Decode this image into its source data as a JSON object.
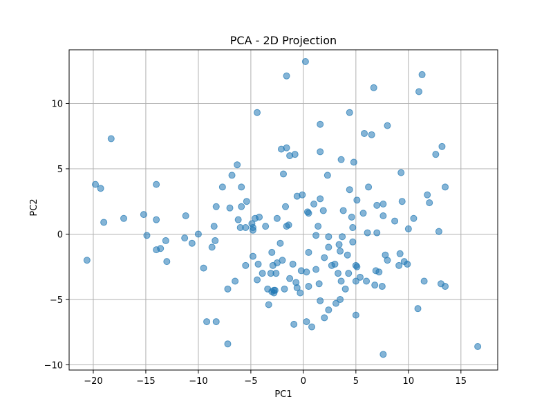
{
  "chart_data": {
    "type": "scatter",
    "title": "PCA - 2D Projection",
    "xlabel": "PC1",
    "ylabel": "PC2",
    "xlim": [
      -22.3,
      18.5
    ],
    "ylim": [
      -10.4,
      14.1
    ],
    "xticks": [
      -20,
      -15,
      -10,
      -5,
      0,
      5,
      10,
      15
    ],
    "yticks": [
      -10,
      -5,
      0,
      5,
      10
    ],
    "grid": true,
    "point_color": "#1f77b4",
    "point_alpha": 0.55,
    "points": [
      [
        -20.6,
        -2.0
      ],
      [
        -19.8,
        3.8
      ],
      [
        -19.3,
        3.5
      ],
      [
        -19.0,
        0.9
      ],
      [
        -18.3,
        7.3
      ],
      [
        -17.1,
        1.2
      ],
      [
        -15.2,
        1.5
      ],
      [
        -14.9,
        -0.1
      ],
      [
        -14.0,
        3.8
      ],
      [
        -14.0,
        1.1
      ],
      [
        -14.0,
        -1.2
      ],
      [
        -13.6,
        -1.1
      ],
      [
        -13.1,
        -0.5
      ],
      [
        -13.0,
        -2.1
      ],
      [
        -11.3,
        -0.3
      ],
      [
        -11.2,
        1.4
      ],
      [
        -10.6,
        -0.7
      ],
      [
        -10.0,
        0.0
      ],
      [
        -9.5,
        -2.6
      ],
      [
        -9.2,
        -6.7
      ],
      [
        -8.7,
        -1.0
      ],
      [
        -8.5,
        0.6
      ],
      [
        -8.4,
        -0.5
      ],
      [
        -8.3,
        2.1
      ],
      [
        -8.3,
        -6.7
      ],
      [
        -7.7,
        3.6
      ],
      [
        -7.2,
        -4.2
      ],
      [
        -7.2,
        -8.4
      ],
      [
        -7.0,
        2.0
      ],
      [
        -6.8,
        4.5
      ],
      [
        -6.5,
        -3.6
      ],
      [
        -6.3,
        5.3
      ],
      [
        -6.2,
        1.1
      ],
      [
        -6.0,
        0.5
      ],
      [
        -5.9,
        2.1
      ],
      [
        -5.9,
        3.6
      ],
      [
        -5.5,
        0.5
      ],
      [
        -5.5,
        -2.4
      ],
      [
        -5.4,
        2.5
      ],
      [
        -4.9,
        0.8
      ],
      [
        -4.8,
        -1.7
      ],
      [
        -4.8,
        0.3
      ],
      [
        -4.8,
        0.5
      ],
      [
        -4.6,
        1.2
      ],
      [
        -4.4,
        9.3
      ],
      [
        -4.4,
        -3.5
      ],
      [
        -4.3,
        -2.3
      ],
      [
        -4.2,
        1.3
      ],
      [
        -3.9,
        -3.0
      ],
      [
        -3.6,
        0.6
      ],
      [
        -3.4,
        -4.2
      ],
      [
        -3.3,
        -5.4
      ],
      [
        -3.1,
        -3.0
      ],
      [
        -3.0,
        -1.4
      ],
      [
        -3.0,
        -4.4
      ],
      [
        -2.9,
        -2.4
      ],
      [
        -2.8,
        -4.5
      ],
      [
        -2.8,
        -4.3
      ],
      [
        -2.7,
        -4.3
      ],
      [
        -2.6,
        -3.0
      ],
      [
        -2.5,
        1.2
      ],
      [
        -2.5,
        -2.2
      ],
      [
        -2.2,
        -0.7
      ],
      [
        -2.1,
        6.5
      ],
      [
        -2.0,
        -2.0
      ],
      [
        -1.9,
        4.6
      ],
      [
        -1.8,
        -4.2
      ],
      [
        -1.7,
        2.1
      ],
      [
        -1.6,
        12.1
      ],
      [
        -1.6,
        6.6
      ],
      [
        -1.6,
        0.6
      ],
      [
        -1.4,
        0.7
      ],
      [
        -1.3,
        -3.4
      ],
      [
        -1.3,
        6.0
      ],
      [
        -1.0,
        -2.3
      ],
      [
        -0.9,
        -6.9
      ],
      [
        -0.8,
        6.1
      ],
      [
        -0.7,
        -3.7
      ],
      [
        -0.6,
        2.9
      ],
      [
        -0.6,
        -4.1
      ],
      [
        -0.3,
        -4.5
      ],
      [
        -0.2,
        -2.8
      ],
      [
        -0.1,
        3.0
      ],
      [
        0.2,
        13.2
      ],
      [
        0.3,
        -2.9
      ],
      [
        0.3,
        -6.7
      ],
      [
        0.4,
        1.7
      ],
      [
        0.5,
        1.6
      ],
      [
        0.5,
        -1.4
      ],
      [
        0.5,
        -4.0
      ],
      [
        0.8,
        -7.1
      ],
      [
        1.0,
        2.3
      ],
      [
        1.2,
        -2.7
      ],
      [
        1.2,
        -0.1
      ],
      [
        1.4,
        0.6
      ],
      [
        1.5,
        -3.8
      ],
      [
        1.6,
        2.7
      ],
      [
        1.6,
        6.3
      ],
      [
        1.6,
        8.4
      ],
      [
        1.6,
        -5.1
      ],
      [
        1.9,
        1.8
      ],
      [
        2.0,
        -1.8
      ],
      [
        2.0,
        -6.4
      ],
      [
        2.3,
        4.5
      ],
      [
        2.4,
        -5.8
      ],
      [
        2.4,
        -1.0
      ],
      [
        2.4,
        -0.2
      ],
      [
        2.7,
        -2.4
      ],
      [
        3.0,
        -2.3
      ],
      [
        3.1,
        -5.3
      ],
      [
        3.3,
        -3.0
      ],
      [
        3.4,
        -0.8
      ],
      [
        3.5,
        -5.0
      ],
      [
        3.5,
        -1.3
      ],
      [
        3.6,
        -3.6
      ],
      [
        3.6,
        5.7
      ],
      [
        3.7,
        -0.2
      ],
      [
        3.8,
        1.8
      ],
      [
        4.0,
        -4.2
      ],
      [
        4.2,
        -1.6
      ],
      [
        4.3,
        -3.0
      ],
      [
        4.4,
        9.3
      ],
      [
        4.4,
        3.4
      ],
      [
        4.6,
        1.3
      ],
      [
        4.7,
        0.5
      ],
      [
        4.7,
        -0.6
      ],
      [
        4.8,
        5.5
      ],
      [
        5.0,
        -6.2
      ],
      [
        5.0,
        -3.6
      ],
      [
        5.0,
        -2.4
      ],
      [
        5.1,
        -2.5
      ],
      [
        5.1,
        2.6
      ],
      [
        5.4,
        -3.3
      ],
      [
        5.7,
        1.6
      ],
      [
        5.8,
        7.7
      ],
      [
        6.0,
        -3.6
      ],
      [
        6.1,
        0.1
      ],
      [
        6.2,
        3.6
      ],
      [
        6.5,
        7.6
      ],
      [
        6.7,
        11.2
      ],
      [
        6.8,
        -3.9
      ],
      [
        6.9,
        -2.8
      ],
      [
        7.0,
        0.1
      ],
      [
        7.0,
        2.2
      ],
      [
        7.2,
        -2.9
      ],
      [
        7.5,
        -4.0
      ],
      [
        7.6,
        -9.2
      ],
      [
        7.6,
        2.3
      ],
      [
        7.6,
        1.4
      ],
      [
        7.8,
        -1.6
      ],
      [
        8.0,
        -2.0
      ],
      [
        8.0,
        8.3
      ],
      [
        8.7,
        1.0
      ],
      [
        9.1,
        -2.4
      ],
      [
        9.2,
        -1.5
      ],
      [
        9.3,
        4.7
      ],
      [
        9.4,
        2.5
      ],
      [
        9.6,
        -2.1
      ],
      [
        9.9,
        -2.3
      ],
      [
        10.0,
        0.4
      ],
      [
        10.5,
        1.2
      ],
      [
        10.9,
        -5.7
      ],
      [
        11.0,
        10.9
      ],
      [
        11.3,
        12.2
      ],
      [
        11.5,
        -3.6
      ],
      [
        11.8,
        3.0
      ],
      [
        12.0,
        2.4
      ],
      [
        12.6,
        6.1
      ],
      [
        12.9,
        0.2
      ],
      [
        13.1,
        -3.8
      ],
      [
        13.2,
        6.7
      ],
      [
        13.5,
        3.6
      ],
      [
        13.5,
        -4.0
      ],
      [
        16.6,
        -8.6
      ]
    ]
  }
}
